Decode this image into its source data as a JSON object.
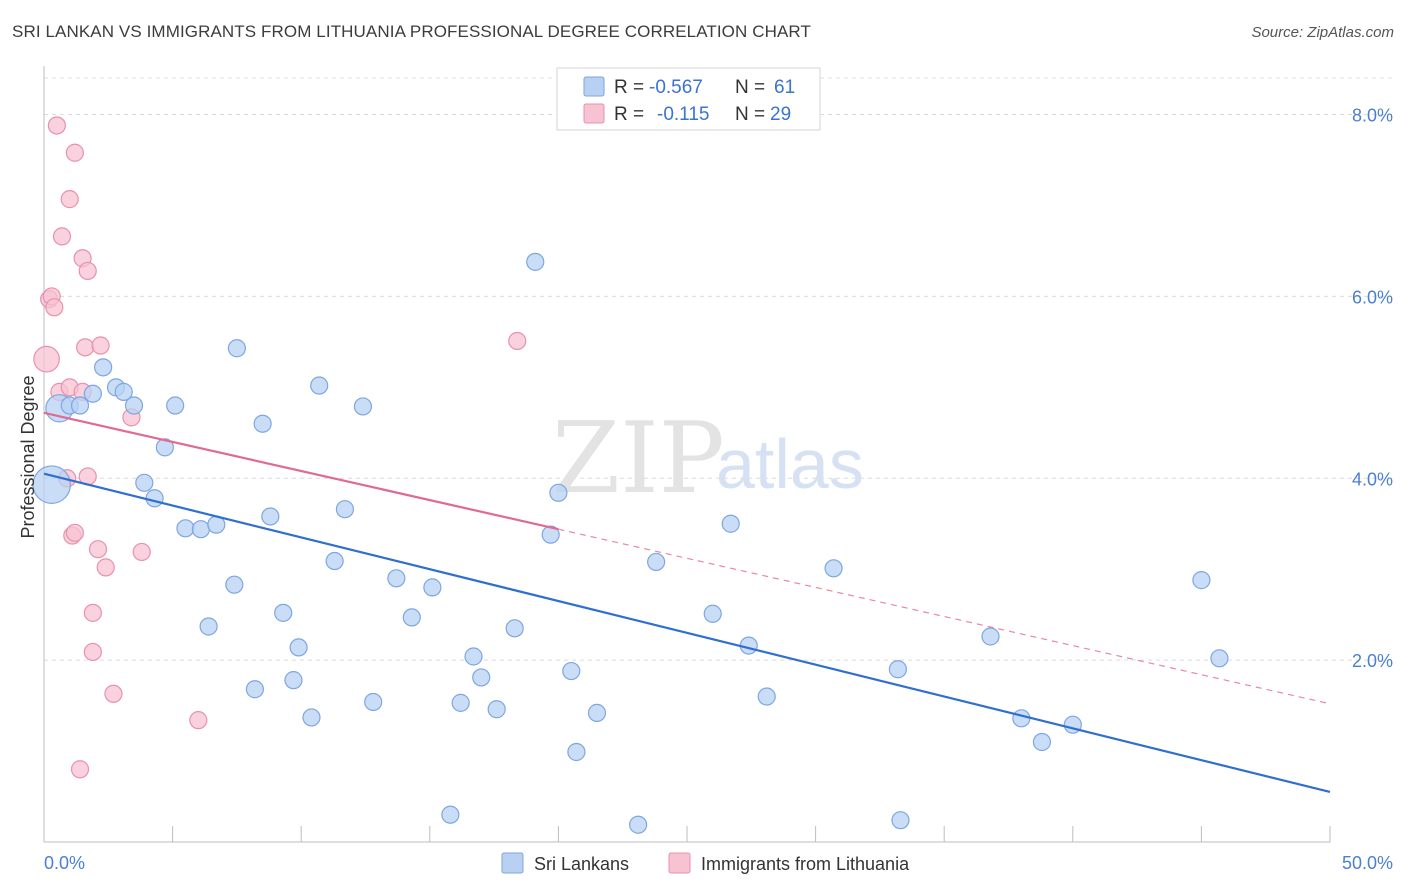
{
  "header": {
    "title": "SRI LANKAN VS IMMIGRANTS FROM LITHUANIA PROFESSIONAL DEGREE CORRELATION CHART",
    "source": "Source: ZipAtlas.com"
  },
  "watermark": {
    "zip": "ZIP",
    "atlas": "atlas"
  },
  "legend": {
    "rows": [
      {
        "r_label": "R =",
        "r_value": "-0.567",
        "n_label": "N =",
        "n_value": "61"
      },
      {
        "r_label": "R =",
        "r_value": "-0.115",
        "n_label": "N =",
        "n_value": "29"
      }
    ]
  },
  "bottom_legend": {
    "series1": "Sri Lankans",
    "series2": "Immigrants from Lithuania"
  },
  "colors": {
    "blue_fill": "#b8d1f3",
    "blue_stroke": "#7ea6e0",
    "blue_line": "#2f6fd1",
    "pink_fill": "#f7c3d3",
    "pink_stroke": "#e891ad",
    "pink_line": "#e06a94"
  },
  "chart_data": {
    "type": "scatter",
    "title": "SRI LANKAN VS IMMIGRANTS FROM LITHUANIA PROFESSIONAL DEGREE CORRELATION CHART",
    "xlabel": "",
    "ylabel": "Professional Degree",
    "xlim": [
      0,
      50
    ],
    "ylim": [
      0,
      8.6
    ],
    "x_tick_labels": [
      "0.0%",
      "50.0%"
    ],
    "y_ticks": [
      2,
      4,
      6,
      8
    ],
    "y_tick_labels": [
      "2.0%",
      "4.0%",
      "6.0%",
      "8.0%"
    ],
    "grid": true,
    "legend_position": "top-center",
    "series": [
      {
        "name": "Sri Lankans",
        "color": "#b8d1f3",
        "r": -0.567,
        "n": 61,
        "trend": {
          "x": [
            0,
            50
          ],
          "y": [
            4.05,
            0.55
          ],
          "style": "solid"
        },
        "points": [
          {
            "x": 0.3,
            "y": 3.93,
            "s": 2.2
          },
          {
            "x": 0.6,
            "y": 4.77,
            "s": 1.6
          },
          {
            "x": 1.0,
            "y": 4.8,
            "s": 1
          },
          {
            "x": 1.4,
            "y": 4.8,
            "s": 1
          },
          {
            "x": 1.9,
            "y": 4.93,
            "s": 1
          },
          {
            "x": 2.3,
            "y": 5.22,
            "s": 1
          },
          {
            "x": 2.8,
            "y": 5.0,
            "s": 1
          },
          {
            "x": 3.1,
            "y": 4.95,
            "s": 1
          },
          {
            "x": 3.5,
            "y": 4.8,
            "s": 1
          },
          {
            "x": 3.9,
            "y": 3.95,
            "s": 1
          },
          {
            "x": 4.3,
            "y": 3.78,
            "s": 1
          },
          {
            "x": 4.7,
            "y": 4.34,
            "s": 1
          },
          {
            "x": 5.1,
            "y": 4.8,
            "s": 1
          },
          {
            "x": 5.5,
            "y": 3.45,
            "s": 1
          },
          {
            "x": 6.1,
            "y": 3.44,
            "s": 1
          },
          {
            "x": 6.4,
            "y": 2.37,
            "s": 1
          },
          {
            "x": 6.7,
            "y": 3.49,
            "s": 1
          },
          {
            "x": 7.4,
            "y": 2.83,
            "s": 1
          },
          {
            "x": 7.5,
            "y": 5.43,
            "s": 1
          },
          {
            "x": 8.2,
            "y": 1.68,
            "s": 1
          },
          {
            "x": 8.5,
            "y": 4.6,
            "s": 1
          },
          {
            "x": 8.8,
            "y": 3.58,
            "s": 1
          },
          {
            "x": 9.3,
            "y": 2.52,
            "s": 1
          },
          {
            "x": 9.7,
            "y": 1.78,
            "s": 1
          },
          {
            "x": 9.9,
            "y": 2.14,
            "s": 1
          },
          {
            "x": 10.4,
            "y": 1.37,
            "s": 1
          },
          {
            "x": 10.7,
            "y": 5.02,
            "s": 1
          },
          {
            "x": 11.3,
            "y": 3.09,
            "s": 1
          },
          {
            "x": 11.7,
            "y": 3.66,
            "s": 1
          },
          {
            "x": 12.4,
            "y": 4.79,
            "s": 1
          },
          {
            "x": 12.8,
            "y": 1.54,
            "s": 1
          },
          {
            "x": 13.7,
            "y": 2.9,
            "s": 1
          },
          {
            "x": 14.3,
            "y": 2.47,
            "s": 1
          },
          {
            "x": 15.1,
            "y": 2.8,
            "s": 1
          },
          {
            "x": 15.8,
            "y": 0.3,
            "s": 1
          },
          {
            "x": 16.2,
            "y": 1.53,
            "s": 1
          },
          {
            "x": 16.7,
            "y": 2.04,
            "s": 1
          },
          {
            "x": 17.0,
            "y": 1.81,
            "s": 1
          },
          {
            "x": 17.6,
            "y": 1.46,
            "s": 1
          },
          {
            "x": 18.3,
            "y": 2.35,
            "s": 1
          },
          {
            "x": 19.1,
            "y": 6.38,
            "s": 1
          },
          {
            "x": 19.7,
            "y": 3.38,
            "s": 1
          },
          {
            "x": 20.0,
            "y": 3.84,
            "s": 1
          },
          {
            "x": 20.5,
            "y": 1.88,
            "s": 1
          },
          {
            "x": 20.7,
            "y": 0.99,
            "s": 1
          },
          {
            "x": 21.5,
            "y": 1.42,
            "s": 1
          },
          {
            "x": 23.1,
            "y": 0.19,
            "s": 1
          },
          {
            "x": 23.8,
            "y": 3.08,
            "s": 1
          },
          {
            "x": 26.0,
            "y": 2.51,
            "s": 1
          },
          {
            "x": 26.7,
            "y": 3.5,
            "s": 1
          },
          {
            "x": 27.4,
            "y": 2.16,
            "s": 1
          },
          {
            "x": 28.1,
            "y": 1.6,
            "s": 1
          },
          {
            "x": 30.7,
            "y": 3.01,
            "s": 1
          },
          {
            "x": 33.2,
            "y": 1.9,
            "s": 1
          },
          {
            "x": 33.3,
            "y": 0.24,
            "s": 1
          },
          {
            "x": 36.8,
            "y": 2.26,
            "s": 1
          },
          {
            "x": 38.0,
            "y": 1.36,
            "s": 1
          },
          {
            "x": 38.8,
            "y": 1.1,
            "s": 1
          },
          {
            "x": 40.0,
            "y": 1.29,
            "s": 1
          },
          {
            "x": 45.0,
            "y": 2.88,
            "s": 1
          },
          {
            "x": 45.7,
            "y": 2.02,
            "s": 1
          }
        ]
      },
      {
        "name": "Immigrants from Lithuania",
        "color": "#f7c3d3",
        "r": -0.115,
        "n": 29,
        "trend": {
          "x": [
            0,
            50
          ],
          "y": [
            4.72,
            1.52
          ],
          "solid_until_x": 20.0,
          "style": "solid-then-dashed"
        },
        "points": [
          {
            "x": 0.1,
            "y": 5.31,
            "s": 1.5
          },
          {
            "x": 0.2,
            "y": 5.97,
            "s": 1
          },
          {
            "x": 0.3,
            "y": 6.0,
            "s": 1
          },
          {
            "x": 0.4,
            "y": 5.88,
            "s": 1
          },
          {
            "x": 0.5,
            "y": 7.88,
            "s": 1
          },
          {
            "x": 0.6,
            "y": 4.95,
            "s": 1
          },
          {
            "x": 0.7,
            "y": 6.66,
            "s": 1
          },
          {
            "x": 0.9,
            "y": 4.0,
            "s": 1
          },
          {
            "x": 1.0,
            "y": 5.0,
            "s": 1
          },
          {
            "x": 1.0,
            "y": 7.07,
            "s": 1
          },
          {
            "x": 1.1,
            "y": 3.37,
            "s": 1
          },
          {
            "x": 1.2,
            "y": 3.4,
            "s": 1
          },
          {
            "x": 1.2,
            "y": 7.58,
            "s": 1
          },
          {
            "x": 1.4,
            "y": 0.8,
            "s": 1
          },
          {
            "x": 1.5,
            "y": 4.95,
            "s": 1
          },
          {
            "x": 1.5,
            "y": 6.42,
            "s": 1
          },
          {
            "x": 1.6,
            "y": 5.44,
            "s": 1
          },
          {
            "x": 1.7,
            "y": 6.28,
            "s": 1
          },
          {
            "x": 1.7,
            "y": 4.02,
            "s": 1
          },
          {
            "x": 1.9,
            "y": 2.09,
            "s": 1
          },
          {
            "x": 1.9,
            "y": 2.52,
            "s": 1
          },
          {
            "x": 2.1,
            "y": 3.22,
            "s": 1
          },
          {
            "x": 2.2,
            "y": 5.46,
            "s": 1
          },
          {
            "x": 2.4,
            "y": 3.02,
            "s": 1
          },
          {
            "x": 2.7,
            "y": 1.63,
            "s": 1
          },
          {
            "x": 3.4,
            "y": 4.67,
            "s": 1
          },
          {
            "x": 3.8,
            "y": 3.19,
            "s": 1
          },
          {
            "x": 6.0,
            "y": 1.34,
            "s": 1
          },
          {
            "x": 18.4,
            "y": 5.51,
            "s": 1
          }
        ]
      }
    ]
  }
}
